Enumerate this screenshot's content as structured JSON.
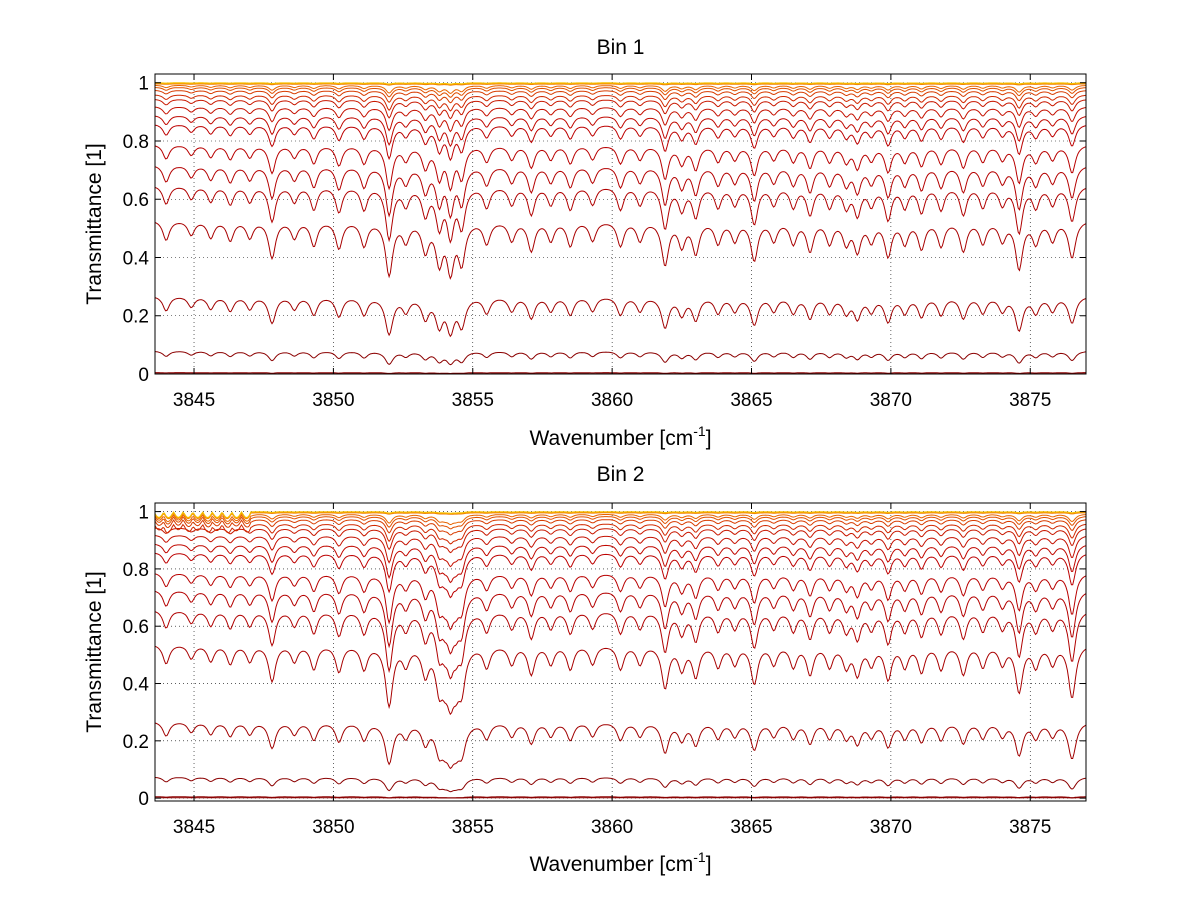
{
  "chart_data": [
    {
      "type": "line",
      "title": "Bin 1",
      "xlabel_main": "Wavenumber [cm",
      "xlabel_sup": "-1",
      "xlabel_tail": "]",
      "ylabel": "Transmittance [1]",
      "xlim": [
        3843.6,
        3877.0
      ],
      "ylim": [
        0,
        1.03
      ],
      "xticks": [
        3845,
        3850,
        3855,
        3860,
        3865,
        3870,
        3875
      ],
      "yticks": [
        0,
        0.2,
        0.4,
        0.6,
        0.8,
        1
      ],
      "ytick_labels": [
        "0",
        "0.2",
        "0.4",
        "0.6",
        "0.8",
        "1"
      ],
      "grid": "dotted",
      "line_depths": [
        0.0008,
        0.004,
        0.009,
        0.02,
        0.05,
        0.08,
        0.11,
        0.14,
        0.17,
        0.2,
        0.23,
        0.26,
        0.29,
        0.32,
        0.35,
        0.38,
        0.42,
        0.46
      ],
      "series": [
        {
          "baseline": 0.0015,
          "noise": 0.0,
          "color": "#8b0000"
        },
        {
          "baseline": 0.005,
          "noise": 0.0,
          "color": "#8b0000"
        },
        {
          "baseline": 0.08,
          "noise": 0.0,
          "color": "#8b0000"
        },
        {
          "baseline": 0.27,
          "noise": 0.0,
          "color": "#a00000"
        },
        {
          "baseline": 0.53,
          "noise": 0.0,
          "color": "#a80000"
        },
        {
          "baseline": 0.65,
          "noise": 0.0,
          "color": "#b00000"
        },
        {
          "baseline": 0.72,
          "noise": 0.0,
          "color": "#b40000"
        },
        {
          "baseline": 0.79,
          "noise": 0.0,
          "color": "#b80000"
        },
        {
          "baseline": 0.86,
          "noise": 0.0,
          "color": "#bc0000"
        },
        {
          "baseline": 0.89,
          "noise": 0.0,
          "color": "#c00800"
        },
        {
          "baseline": 0.92,
          "noise": 0.0,
          "color": "#c41000"
        },
        {
          "baseline": 0.945,
          "noise": 0.0,
          "color": "#c81800"
        },
        {
          "baseline": 0.96,
          "noise": 0.0,
          "color": "#d02800"
        },
        {
          "baseline": 0.975,
          "noise": 0.0,
          "color": "#d83c00"
        },
        {
          "baseline": 0.985,
          "noise": 0.0,
          "color": "#e05000"
        },
        {
          "baseline": 0.992,
          "noise": 0.0,
          "color": "#e86400"
        },
        {
          "baseline": 0.996,
          "noise": 0.0,
          "color": "#f07a00"
        },
        {
          "baseline": 0.998,
          "noise": 0.0,
          "color": "#f59000"
        },
        {
          "baseline": 0.999,
          "noise": 0.0,
          "color": "#f8a800"
        },
        {
          "baseline": 1.0,
          "noise": 0.0,
          "color": "#f5c000"
        }
      ]
    },
    {
      "type": "line",
      "title": "Bin 2",
      "xlabel_main": "Wavenumber [cm",
      "xlabel_sup": "-1",
      "xlabel_tail": "]",
      "ylabel": "Transmittance [1]",
      "xlim": [
        3843.6,
        3877.0
      ],
      "ylim": [
        -0.01,
        1.03
      ],
      "xticks": [
        3845,
        3850,
        3855,
        3860,
        3865,
        3870,
        3875
      ],
      "yticks": [
        0,
        0.2,
        0.4,
        0.6,
        0.8,
        1
      ],
      "ytick_labels": [
        "0",
        "0.2",
        "0.4",
        "0.6",
        "0.8",
        "1"
      ],
      "grid": "dotted",
      "series": [
        {
          "baseline": 0.0015,
          "noise": 0.0,
          "color": "#8b0000"
        },
        {
          "baseline": 0.005,
          "noise": 0.0,
          "color": "#8b0000"
        },
        {
          "baseline": 0.075,
          "noise": 0.0,
          "color": "#8b0000"
        },
        {
          "baseline": 0.27,
          "noise": 0.0,
          "color": "#a00000"
        },
        {
          "baseline": 0.54,
          "noise": 0.0,
          "color": "#a80000"
        },
        {
          "baseline": 0.66,
          "noise": 0.0,
          "color": "#b00000"
        },
        {
          "baseline": 0.73,
          "noise": 0.0,
          "color": "#b40000"
        },
        {
          "baseline": 0.79,
          "noise": 0.0,
          "color": "#b80000"
        },
        {
          "baseline": 0.86,
          "noise": 0.0,
          "color": "#bc0000"
        },
        {
          "baseline": 0.89,
          "noise": 0.0,
          "color": "#c00800"
        },
        {
          "baseline": 0.92,
          "noise": 0.0,
          "color": "#c41000"
        },
        {
          "baseline": 0.945,
          "noise": 0.0,
          "color": "#c81800"
        },
        {
          "baseline": 0.96,
          "noise": 0.0,
          "color": "#d02800"
        },
        {
          "baseline": 0.975,
          "noise": 0.0,
          "color": "#d83c00"
        },
        {
          "baseline": 0.985,
          "noise": 0.0,
          "color": "#e05000"
        },
        {
          "baseline": 0.992,
          "noise": 0.0,
          "color": "#e86400"
        },
        {
          "baseline": 0.996,
          "noise": 0.0,
          "color": "#f07a00"
        },
        {
          "baseline": 0.998,
          "noise": 0.0,
          "color": "#f59000"
        },
        {
          "baseline": 0.999,
          "noise": 0.0,
          "color": "#f8a800"
        },
        {
          "baseline": 1.0,
          "noise": 0.0,
          "color": "#f5c000"
        }
      ],
      "lines_center": [
        3847.8,
        3850.2,
        3851.1,
        3852.0,
        3853.3,
        3854.0,
        3854.4,
        3855.5,
        3857.1,
        3858.5,
        3860.3,
        3861.9,
        3863.0,
        3865.1,
        3867.1,
        3868.8,
        3869.9,
        3871.1,
        3872.6,
        3874.6,
        3876.5
      ]
    }
  ]
}
